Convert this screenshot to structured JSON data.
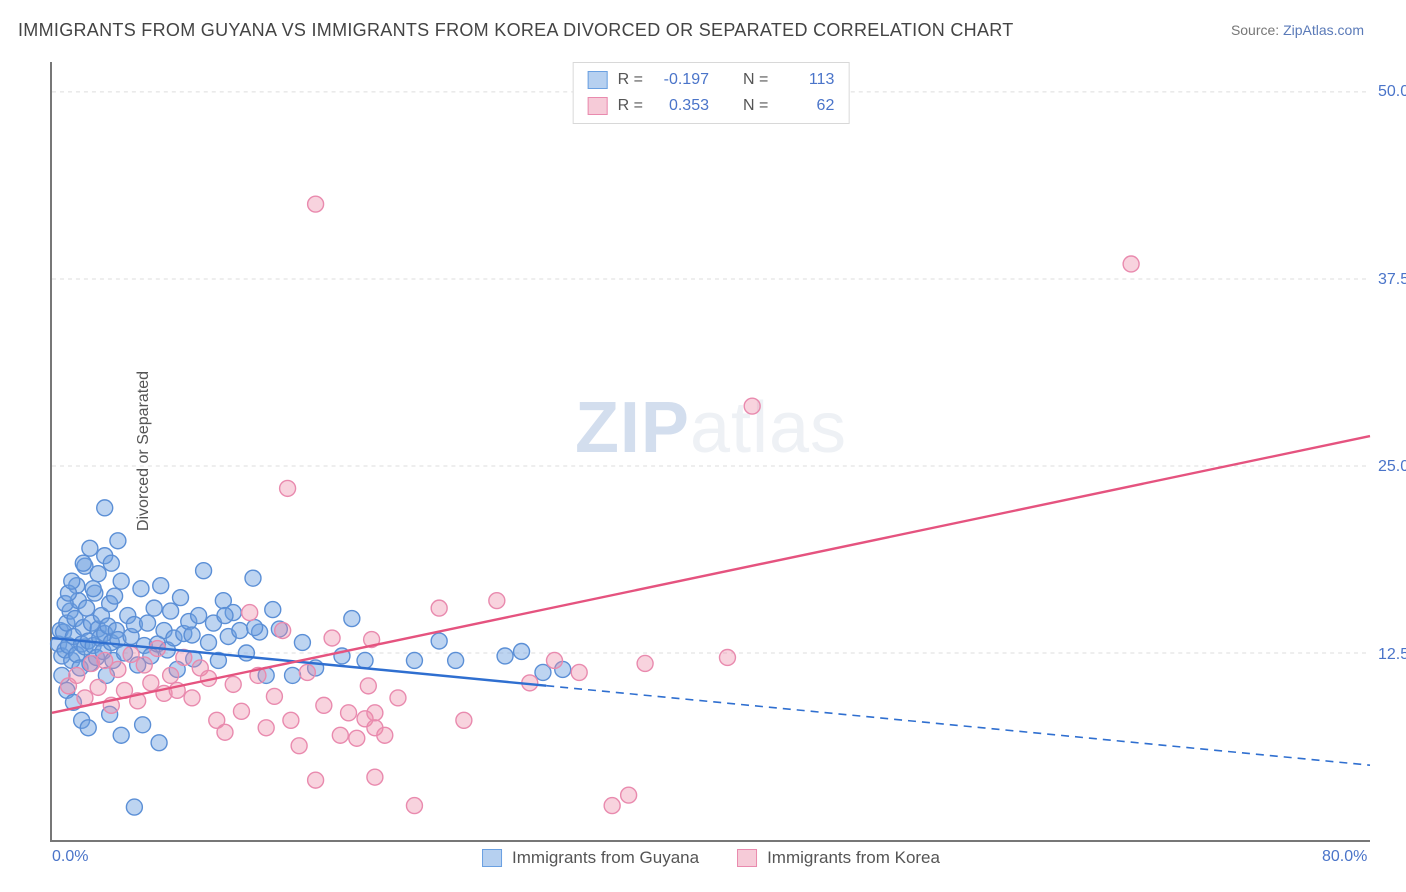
{
  "title": "IMMIGRANTS FROM GUYANA VS IMMIGRANTS FROM KOREA DIVORCED OR SEPARATED CORRELATION CHART",
  "source_label": "Source: ",
  "source_name": "ZipAtlas.com",
  "ylabel": "Divorced or Separated",
  "watermark_a": "ZIP",
  "watermark_b": "atlas",
  "chart": {
    "type": "scatter",
    "background_color": "#ffffff",
    "grid_color": "#dddddd",
    "axis_color": "#777777",
    "xlim": [
      0,
      80
    ],
    "ylim": [
      0,
      52
    ],
    "xtick_labels": [
      {
        "value": 0,
        "label": "0.0%"
      },
      {
        "value": 80,
        "label": "80.0%"
      }
    ],
    "ytick_labels": [
      {
        "value": 12.5,
        "label": "12.5%"
      },
      {
        "value": 25.0,
        "label": "25.0%"
      },
      {
        "value": 37.5,
        "label": "37.5%"
      },
      {
        "value": 50.0,
        "label": "50.0%"
      }
    ],
    "marker_radius": 8,
    "marker_stroke_width": 1.4,
    "line_width": 2.4,
    "series": [
      {
        "key": "guyana",
        "label": "Immigrants from Guyana",
        "R": "-0.197",
        "N": "113",
        "fill_color": "rgba(108,160,225,0.45)",
        "stroke_color": "#5b8fd6",
        "line_color": "#2f6fd0",
        "swatch_fill": "#b6d0f0",
        "swatch_border": "#6aa0e1",
        "trend": {
          "x1": 0,
          "y1": 13.5,
          "x2": 80,
          "y2": 5.0,
          "solid_until_x": 30
        },
        "points": [
          [
            0.4,
            13.1
          ],
          [
            0.5,
            14.0
          ],
          [
            0.6,
            12.3
          ],
          [
            0.7,
            13.9
          ],
          [
            0.8,
            12.7
          ],
          [
            0.9,
            14.5
          ],
          [
            1.0,
            13.0
          ],
          [
            1.1,
            15.3
          ],
          [
            1.2,
            12.0
          ],
          [
            1.3,
            13.6
          ],
          [
            1.4,
            14.8
          ],
          [
            1.5,
            12.4
          ],
          [
            1.6,
            16.0
          ],
          [
            1.7,
            11.5
          ],
          [
            1.8,
            13.1
          ],
          [
            1.9,
            14.2
          ],
          [
            2.0,
            12.9
          ],
          [
            2.1,
            15.5
          ],
          [
            2.2,
            13.3
          ],
          [
            2.3,
            11.8
          ],
          [
            2.4,
            14.5
          ],
          [
            2.5,
            13.0
          ],
          [
            2.6,
            16.5
          ],
          [
            2.7,
            12.2
          ],
          [
            2.8,
            14.1
          ],
          [
            2.9,
            13.5
          ],
          [
            3.0,
            15.0
          ],
          [
            3.1,
            12.6
          ],
          [
            3.2,
            13.8
          ],
          [
            3.3,
            11.0
          ],
          [
            3.4,
            14.3
          ],
          [
            3.5,
            15.8
          ],
          [
            3.6,
            13.2
          ],
          [
            3.7,
            12.0
          ],
          [
            3.8,
            16.3
          ],
          [
            3.9,
            14.0
          ],
          [
            4.0,
            13.4
          ],
          [
            4.2,
            17.3
          ],
          [
            4.4,
            12.5
          ],
          [
            4.6,
            15.0
          ],
          [
            4.8,
            13.6
          ],
          [
            5.0,
            14.4
          ],
          [
            5.2,
            11.7
          ],
          [
            5.4,
            16.8
          ],
          [
            5.6,
            13.0
          ],
          [
            5.8,
            14.5
          ],
          [
            6.0,
            12.3
          ],
          [
            6.2,
            15.5
          ],
          [
            6.4,
            13.1
          ],
          [
            6.6,
            17.0
          ],
          [
            6.8,
            14.0
          ],
          [
            7.0,
            12.7
          ],
          [
            7.2,
            15.3
          ],
          [
            7.4,
            13.5
          ],
          [
            7.6,
            11.4
          ],
          [
            7.8,
            16.2
          ],
          [
            8.0,
            13.8
          ],
          [
            8.3,
            14.6
          ],
          [
            8.6,
            12.1
          ],
          [
            8.9,
            15.0
          ],
          [
            9.2,
            18.0
          ],
          [
            9.5,
            13.2
          ],
          [
            9.8,
            14.5
          ],
          [
            10.1,
            12.0
          ],
          [
            10.4,
            16.0
          ],
          [
            10.7,
            13.6
          ],
          [
            11.0,
            15.2
          ],
          [
            11.4,
            14.0
          ],
          [
            11.8,
            12.5
          ],
          [
            12.2,
            17.5
          ],
          [
            12.6,
            13.9
          ],
          [
            13.0,
            11.0
          ],
          [
            13.4,
            15.4
          ],
          [
            13.8,
            14.1
          ],
          [
            2.0,
            18.3
          ],
          [
            2.3,
            19.5
          ],
          [
            2.8,
            17.8
          ],
          [
            3.2,
            19.0
          ],
          [
            3.6,
            18.5
          ],
          [
            4.0,
            20.0
          ],
          [
            3.2,
            22.2
          ],
          [
            1.5,
            17.0
          ],
          [
            1.9,
            18.5
          ],
          [
            2.5,
            16.8
          ],
          [
            0.8,
            15.8
          ],
          [
            1.0,
            16.5
          ],
          [
            1.2,
            17.3
          ],
          [
            0.6,
            11.0
          ],
          [
            0.9,
            10.0
          ],
          [
            1.3,
            9.2
          ],
          [
            1.8,
            8.0
          ],
          [
            2.2,
            7.5
          ],
          [
            3.5,
            8.4
          ],
          [
            4.2,
            7.0
          ],
          [
            5.0,
            2.2
          ],
          [
            5.5,
            7.7
          ],
          [
            6.5,
            6.5
          ],
          [
            8.5,
            13.7
          ],
          [
            10.5,
            15.0
          ],
          [
            12.3,
            14.2
          ],
          [
            14.6,
            11.0
          ],
          [
            15.2,
            13.2
          ],
          [
            16.0,
            11.5
          ],
          [
            17.6,
            12.3
          ],
          [
            18.2,
            14.8
          ],
          [
            19.0,
            12.0
          ],
          [
            22.0,
            12.0
          ],
          [
            23.5,
            13.3
          ],
          [
            24.5,
            12.0
          ],
          [
            27.5,
            12.3
          ],
          [
            28.5,
            12.6
          ],
          [
            29.8,
            11.2
          ],
          [
            31.0,
            11.4
          ]
        ]
      },
      {
        "key": "korea",
        "label": "Immigrants from Korea",
        "R": "0.353",
        "N": "62",
        "fill_color": "rgba(236,140,168,0.38)",
        "stroke_color": "#e98aae",
        "line_color": "#e5537f",
        "swatch_fill": "#f6cbd8",
        "swatch_border": "#e98aae",
        "trend": {
          "x1": 0,
          "y1": 8.5,
          "x2": 80,
          "y2": 27.0,
          "solid_until_x": 80
        },
        "points": [
          [
            1.0,
            10.3
          ],
          [
            1.5,
            11.0
          ],
          [
            2.0,
            9.5
          ],
          [
            2.4,
            11.8
          ],
          [
            2.8,
            10.2
          ],
          [
            3.2,
            12.0
          ],
          [
            3.6,
            9.0
          ],
          [
            4.0,
            11.4
          ],
          [
            4.4,
            10.0
          ],
          [
            4.8,
            12.4
          ],
          [
            5.2,
            9.3
          ],
          [
            5.6,
            11.7
          ],
          [
            6.0,
            10.5
          ],
          [
            6.4,
            12.8
          ],
          [
            6.8,
            9.8
          ],
          [
            7.2,
            11.0
          ],
          [
            7.6,
            10.0
          ],
          [
            8.0,
            12.2
          ],
          [
            8.5,
            9.5
          ],
          [
            9.0,
            11.5
          ],
          [
            9.5,
            10.8
          ],
          [
            10.0,
            8.0
          ],
          [
            10.5,
            7.2
          ],
          [
            11.0,
            10.4
          ],
          [
            11.5,
            8.6
          ],
          [
            12.0,
            15.2
          ],
          [
            12.5,
            11.0
          ],
          [
            13.0,
            7.5
          ],
          [
            13.5,
            9.6
          ],
          [
            14.0,
            14.0
          ],
          [
            14.5,
            8.0
          ],
          [
            15.0,
            6.3
          ],
          [
            15.5,
            11.2
          ],
          [
            16.0,
            4.0
          ],
          [
            16.5,
            9.0
          ],
          [
            17.0,
            13.5
          ],
          [
            17.5,
            7.0
          ],
          [
            18.0,
            8.5
          ],
          [
            18.5,
            6.8
          ],
          [
            19.0,
            8.1
          ],
          [
            19.2,
            10.3
          ],
          [
            19.4,
            13.4
          ],
          [
            19.6,
            7.5
          ],
          [
            19.6,
            8.5
          ],
          [
            19.6,
            4.2
          ],
          [
            20.2,
            7.0
          ],
          [
            21.0,
            9.5
          ],
          [
            22.0,
            2.3
          ],
          [
            23.5,
            15.5
          ],
          [
            25.0,
            8.0
          ],
          [
            27.0,
            16.0
          ],
          [
            29.0,
            10.5
          ],
          [
            30.5,
            12.0
          ],
          [
            32.0,
            11.2
          ],
          [
            34.0,
            2.3
          ],
          [
            35.0,
            3.0
          ],
          [
            36.0,
            11.8
          ],
          [
            41.0,
            12.2
          ],
          [
            14.3,
            23.5
          ],
          [
            16.0,
            42.5
          ],
          [
            42.5,
            29.0
          ],
          [
            65.5,
            38.5
          ]
        ]
      }
    ],
    "legend_top_labels": {
      "R": "R =",
      "N": "N ="
    }
  }
}
